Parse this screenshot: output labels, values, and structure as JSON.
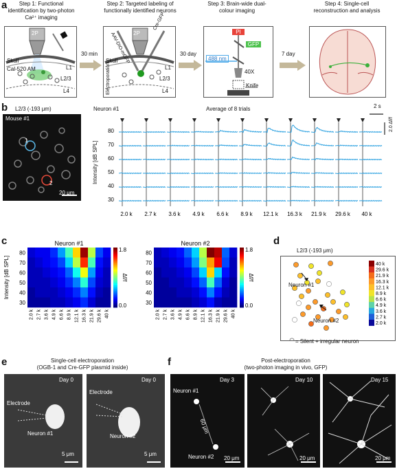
{
  "panel_a": {
    "label": "a",
    "steps": [
      {
        "title": "Step 1: Functional identification by two-photon Ca²⁺ imaging"
      },
      {
        "title": "Step 2: Targeted labeling of functionally identified neurons"
      },
      {
        "title": "Step 3: Brain-wide dual-colour imaging"
      },
      {
        "title": "Step 4: Single-cell reconstruction and analysis"
      }
    ],
    "arrows": [
      "30 min",
      "30 day",
      "7 day"
    ],
    "step1": {
      "objective": "2P",
      "skull": "Skull",
      "dye": "Cal-520 AM",
      "layers": [
        "L1",
        "L2/3",
        "L4"
      ]
    },
    "step2": {
      "objective": "2P",
      "skull": "Skull",
      "pipette_left": "AAV-DIO-mGFP",
      "pipette_right": "Cre-GFP",
      "side": "Electroporation",
      "layers": [
        "L1",
        "L2/3",
        "L4"
      ]
    },
    "step3": {
      "pi": "PI",
      "gfp": "GFP",
      "laser": "488 nm",
      "objective": "40X",
      "knife": "Knife"
    }
  },
  "panel_b": {
    "label": "b",
    "layer": "L2/3 (-193 μm)",
    "mouse": "Mouse #1",
    "cell1": "1",
    "cell2": "2",
    "scalebar": "20 μm",
    "neuron": "Neuron #1",
    "avg": "Average of 8 trials",
    "time_scale": "2 s",
    "df_scale": "2.0 Δf/f",
    "ylabel": "Intensity [dB SPL]"
  },
  "panel_c": {
    "label": "c",
    "cbar_label": "Δf/f",
    "cbar_ticks": [
      "1.8",
      "0.0"
    ],
    "ylabel": "Intensity [dB SPL]"
  },
  "panel_d": {
    "label": "d",
    "title": "L2/3 (-193 μm)",
    "n1": "Neuron #1",
    "n2": "Neuron #2",
    "legend": "= Silent + irregular neuron",
    "freq_ticks": [
      "40 k",
      "29.6 k",
      "21.9 k",
      "16.3 k",
      "12.1 k",
      "8.9 k",
      "6.6 k",
      "4.9 k",
      "3.6 k",
      "2.7 k",
      "2.0 k"
    ],
    "colors": [
      "#8b0000",
      "#d7301f",
      "#f46d1a",
      "#fd9a2a",
      "#fdbf2a",
      "#f0e42a",
      "#b8e24a",
      "#5fd3a8",
      "#28a8e0",
      "#1f5fd8",
      "#0a0a9a"
    ]
  },
  "panel_e": {
    "label": "e",
    "title": "Single-cell electroporation",
    "subtitle": "(OGB-1 and Cre-GFP plasmid inside)",
    "day": "Day 0",
    "electrode": "Electrode",
    "n1": "Neuron #1",
    "n2": "Neuron #2",
    "scalebar": "5 μm"
  },
  "panel_f": {
    "label": "f",
    "title": "Post-electroporation",
    "subtitle": "(two-photon imaging in vivo, GFP)",
    "days": [
      "Day 3",
      "Day 10",
      "Day 15"
    ],
    "n1": "Neuron #1",
    "n2": "Neuron #2",
    "dist": "60 μm",
    "scalebar": "20 μm"
  },
  "chart_data": [
    {
      "type": "line",
      "title": "Average of 8 trials",
      "neuron": "Neuron #1",
      "ylabel": "Intensity [dB SPL]",
      "categories": [
        "2.0 k",
        "2.7 k",
        "3.6 k",
        "4.9 k",
        "6.6 k",
        "8.9 k",
        "12.1 k",
        "16.3 k",
        "21.9 k",
        "29.6 k",
        "40 k"
      ],
      "rows": [
        80,
        70,
        60,
        50,
        40,
        30
      ],
      "peak_df": [
        [
          0.0,
          0.0,
          0.05,
          0.1,
          0.3,
          0.5,
          0.9,
          1.6,
          1.0,
          0.2,
          0.05
        ],
        [
          0.0,
          0.0,
          0.05,
          0.05,
          0.15,
          0.3,
          0.6,
          1.3,
          0.6,
          0.1,
          0.0
        ],
        [
          0.0,
          0.0,
          0.0,
          0.05,
          0.05,
          0.1,
          0.2,
          0.5,
          0.2,
          0.05,
          0.0
        ],
        [
          0.0,
          0.0,
          0.0,
          0.0,
          0.05,
          0.05,
          0.1,
          0.2,
          0.1,
          0.0,
          0.0
        ],
        [
          0.0,
          0.0,
          0.0,
          0.0,
          0.0,
          0.05,
          0.05,
          0.1,
          0.05,
          0.0,
          0.0
        ],
        [
          0.0,
          0.0,
          0.0,
          0.0,
          0.0,
          0.0,
          0.0,
          0.05,
          0.0,
          0.0,
          0.0
        ]
      ]
    },
    {
      "type": "heatmap",
      "title": "Neuron #1",
      "ylabel": "Intensity [dB SPL]",
      "x": [
        "2.0 k",
        "2.7 k",
        "3.6 k",
        "4.9 k",
        "6.6 k",
        "8.9 k",
        "12.1 k",
        "16.3 k",
        "21.9 k",
        "29.6 k",
        "40 k"
      ],
      "y": [
        80,
        70,
        60,
        50,
        40,
        30
      ],
      "zlim": [
        0,
        1.8
      ],
      "values": [
        [
          0.15,
          0.2,
          0.2,
          0.3,
          0.5,
          0.8,
          1.2,
          1.75,
          1.0,
          0.35,
          0.2
        ],
        [
          0.1,
          0.15,
          0.2,
          0.25,
          0.35,
          0.6,
          1.0,
          1.5,
          0.8,
          0.25,
          0.15
        ],
        [
          0.1,
          0.1,
          0.15,
          0.2,
          0.25,
          0.4,
          0.7,
          1.1,
          0.5,
          0.2,
          0.1
        ],
        [
          0.1,
          0.1,
          0.1,
          0.15,
          0.2,
          0.3,
          0.45,
          0.75,
          0.35,
          0.15,
          0.1
        ],
        [
          0.05,
          0.1,
          0.1,
          0.1,
          0.15,
          0.2,
          0.3,
          0.45,
          0.25,
          0.1,
          0.05
        ],
        [
          0.05,
          0.05,
          0.05,
          0.1,
          0.1,
          0.15,
          0.2,
          0.3,
          0.15,
          0.05,
          0.05
        ]
      ]
    },
    {
      "type": "heatmap",
      "title": "Neuron #2",
      "ylabel": "Intensity [dB SPL]",
      "x": [
        "2.0 k",
        "2.7 k",
        "3.6 k",
        "4.9 k",
        "6.6 k",
        "8.9 k",
        "12.1 k",
        "16.3 k",
        "21.9 k",
        "29.6 k",
        "40 k"
      ],
      "y": [
        80,
        70,
        60,
        50,
        40,
        30
      ],
      "zlim": [
        0,
        1.8
      ],
      "values": [
        [
          0.1,
          0.15,
          0.2,
          0.25,
          0.4,
          0.6,
          1.0,
          1.8,
          1.7,
          0.4,
          0.15
        ],
        [
          0.1,
          0.1,
          0.15,
          0.2,
          0.3,
          0.5,
          0.9,
          1.3,
          1.6,
          0.35,
          0.1
        ],
        [
          0.05,
          0.1,
          0.1,
          0.15,
          0.2,
          0.35,
          0.6,
          1.2,
          0.6,
          0.25,
          0.1
        ],
        [
          0.05,
          0.05,
          0.1,
          0.1,
          0.15,
          0.25,
          0.4,
          0.8,
          0.4,
          0.15,
          0.05
        ],
        [
          0.05,
          0.05,
          0.05,
          0.1,
          0.1,
          0.15,
          0.25,
          0.45,
          0.25,
          0.1,
          0.05
        ],
        [
          0.05,
          0.05,
          0.05,
          0.05,
          0.05,
          0.1,
          0.15,
          0.25,
          0.1,
          0.05,
          0.05
        ]
      ]
    }
  ]
}
